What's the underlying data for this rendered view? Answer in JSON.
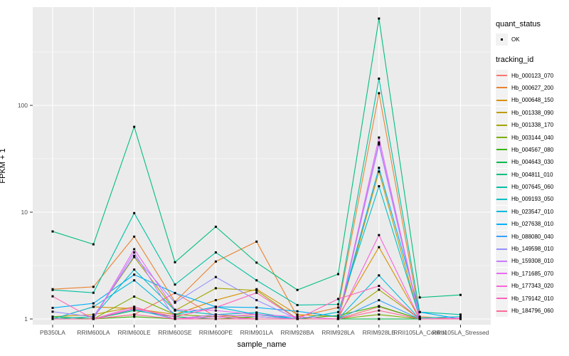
{
  "figure": {
    "x_axis_title": "sample_name",
    "y_axis_title": "FPKM + 1"
  },
  "legend": {
    "quant_status_title": "quant_status",
    "ok_label": "OK",
    "tracking_id_title": "tracking_id"
  },
  "colors": {
    "panel_bg": "#EBEBEB",
    "grid_major": "#FFFFFF",
    "grid_minor": "#FFFFFF",
    "tick_mark": "#333333",
    "axis_text": "#4D4D4D",
    "point": "#000000",
    "legend_key_bg": "#F2F2F2"
  },
  "chart_data": {
    "type": "line",
    "title": "",
    "xlabel": "sample_name",
    "ylabel": "FPKM + 1",
    "y_scale": "log10",
    "ylim": [
      1,
      800
    ],
    "y_ticks": [
      1,
      10,
      100
    ],
    "grid": true,
    "legend_position": "right",
    "quant_status_legend": {
      "title": "quant_status",
      "entries": [
        "OK"
      ]
    },
    "series_legend_title": "tracking_id",
    "categories": [
      "PB350LA",
      "RRIM600LA",
      "RRIM600LE",
      "RRIM600SE",
      "RRIM600PE",
      "RRIM901LA",
      "RRIM928BA",
      "RRIM928LA",
      "RRIM928LE",
      "RRII105LA_Control",
      "RRII105LA_Stressed"
    ],
    "series": [
      {
        "name": "Hb_000123_070",
        "color": "#F8766D",
        "values": [
          1.0,
          1.0,
          1.1,
          1.75,
          1.05,
          1.1,
          1.0,
          1.0,
          1.3,
          1.0,
          1.0
        ]
      },
      {
        "name": "Hb_000627_200",
        "color": "#EA8331",
        "values": [
          1.9,
          2.0,
          5.9,
          1.45,
          3.45,
          5.3,
          1.05,
          1.28,
          130,
          1.05,
          1.0
        ]
      },
      {
        "name": "Hb_000648_150",
        "color": "#D89000",
        "values": [
          1.0,
          1.3,
          1.25,
          1.1,
          1.5,
          1.9,
          1.1,
          1.05,
          4.7,
          1.0,
          1.0
        ]
      },
      {
        "name": "Hb_001338_090",
        "color": "#C09B00",
        "values": [
          1.05,
          1.1,
          1.3,
          1.0,
          1.1,
          1.0,
          1.0,
          1.0,
          24.0,
          1.0,
          1.0
        ]
      },
      {
        "name": "Hb_001338_170",
        "color": "#A3A500",
        "values": [
          1.0,
          1.05,
          3.8,
          1.2,
          1.94,
          1.85,
          1.0,
          1.0,
          1.88,
          1.0,
          1.0
        ]
      },
      {
        "name": "Hb_003144_040",
        "color": "#7CAE00",
        "values": [
          1.0,
          1.0,
          1.62,
          1.1,
          1.05,
          1.0,
          1.0,
          1.0,
          1.1,
          1.0,
          1.0
        ]
      },
      {
        "name": "Hb_004567_080",
        "color": "#39B600",
        "values": [
          1.0,
          1.0,
          1.05,
          1.0,
          1.0,
          1.05,
          1.0,
          1.08,
          1.32,
          1.0,
          1.0
        ]
      },
      {
        "name": "Hb_004643_030",
        "color": "#00BB4E",
        "values": [
          1.05,
          1.0,
          1.2,
          1.05,
          1.0,
          1.0,
          1.0,
          1.0,
          1.0,
          1.0,
          1.0
        ]
      },
      {
        "name": "Hb_004811_010",
        "color": "#00BF7D",
        "values": [
          6.6,
          5.0,
          63.0,
          3.4,
          7.3,
          3.37,
          1.87,
          2.63,
          650,
          1.59,
          1.68
        ]
      },
      {
        "name": "Hb_007645_060",
        "color": "#00C1A3",
        "values": [
          1.87,
          1.76,
          9.8,
          2.1,
          4.2,
          2.3,
          1.35,
          1.37,
          178,
          1.16,
          1.1
        ]
      },
      {
        "name": "Hb_009193_050",
        "color": "#00BFC4",
        "values": [
          1.0,
          1.05,
          2.9,
          1.2,
          1.1,
          1.15,
          1.0,
          1.16,
          17.5,
          1.02,
          1.05
        ]
      },
      {
        "name": "Hb_023547_010",
        "color": "#00BADE",
        "values": [
          1.0,
          1.3,
          2.3,
          1.1,
          1.3,
          1.1,
          1.0,
          1.0,
          2.56,
          1.0,
          1.0
        ]
      },
      {
        "name": "Hb_027638_010",
        "color": "#00B0F6",
        "values": [
          1.27,
          1.4,
          2.6,
          1.75,
          1.3,
          1.28,
          1.18,
          1.05,
          26.0,
          1.16,
          1.0
        ]
      },
      {
        "name": "Hb_088080_040",
        "color": "#35A2FF",
        "values": [
          1.0,
          1.0,
          1.23,
          1.0,
          1.05,
          1.0,
          1.0,
          1.0,
          1.5,
          1.0,
          1.0
        ]
      },
      {
        "name": "Hb_149598_010",
        "color": "#9590FF",
        "values": [
          1.17,
          1.05,
          3.9,
          1.42,
          2.47,
          1.5,
          1.0,
          1.0,
          43.0,
          1.0,
          1.0
        ]
      },
      {
        "name": "Hb_159308_010",
        "color": "#C77CFF",
        "values": [
          1.0,
          1.0,
          4.2,
          1.0,
          1.1,
          1.05,
          1.0,
          1.0,
          45.0,
          1.0,
          1.0
        ]
      },
      {
        "name": "Hb_171685_070",
        "color": "#E76BF3",
        "values": [
          1.0,
          1.0,
          4.5,
          1.22,
          1.2,
          1.1,
          1.05,
          1.0,
          50.0,
          1.0,
          1.0
        ]
      },
      {
        "name": "Hb_177343_020",
        "color": "#FA62DB",
        "values": [
          1.0,
          1.0,
          1.3,
          1.0,
          1.05,
          1.0,
          1.0,
          1.0,
          6.1,
          1.0,
          1.02
        ]
      },
      {
        "name": "Hb_179142_010",
        "color": "#FF62BC",
        "values": [
          1.63,
          1.0,
          1.25,
          1.05,
          1.28,
          1.76,
          1.0,
          1.54,
          2.04,
          1.0,
          1.0
        ]
      },
      {
        "name": "Hb_184796_060",
        "color": "#FF6A98",
        "values": [
          1.0,
          1.0,
          1.1,
          1.0,
          1.0,
          1.0,
          1.0,
          1.0,
          1.2,
          1.0,
          1.0
        ]
      }
    ]
  }
}
